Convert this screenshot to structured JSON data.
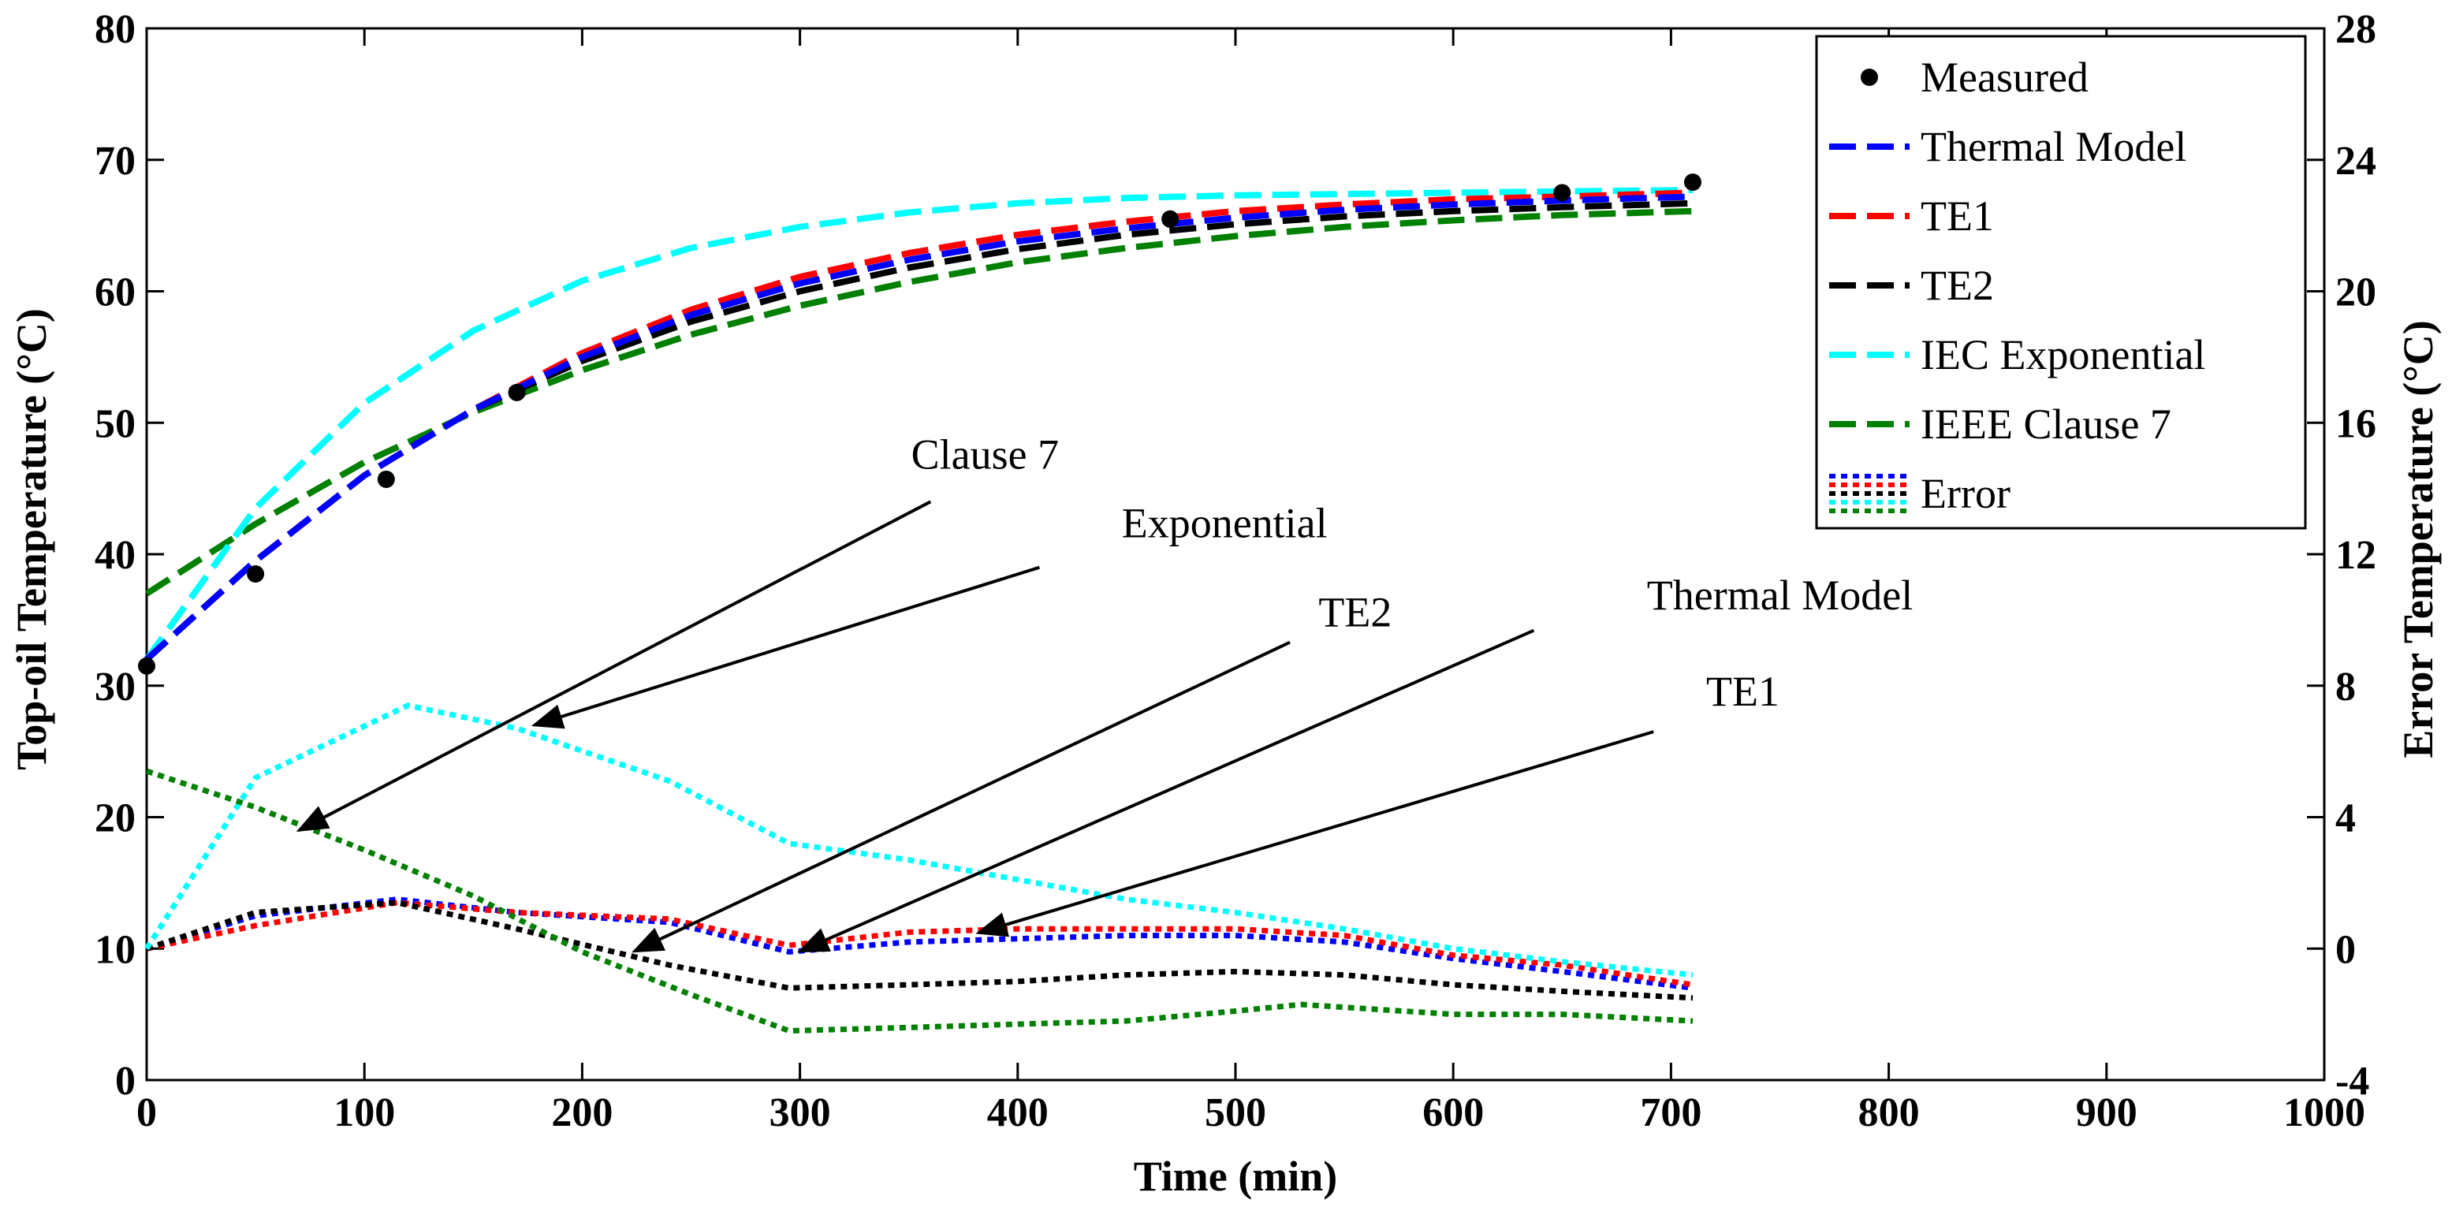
{
  "chart_data": {
    "type": "line",
    "title": "",
    "xlabel": "Time (min)",
    "ylabel": "Top-oil Temperature (°C)",
    "y2label": "Error Temperature (°C)",
    "xlim": [
      0,
      1000
    ],
    "ylim": [
      0,
      80
    ],
    "y2lim": [
      -4,
      28
    ],
    "xticks": [
      "0",
      "100",
      "200",
      "300",
      "400",
      "500",
      "600",
      "700",
      "800",
      "900",
      "1000"
    ],
    "yticks": [
      "0",
      "10",
      "20",
      "30",
      "40",
      "50",
      "60",
      "70",
      "80"
    ],
    "y2ticks": [
      "-4",
      "0",
      "4",
      "8",
      "12",
      "16",
      "20",
      "24",
      "28"
    ],
    "grid": false,
    "legend_position": "top-right",
    "legend": [
      "Measured",
      "Thermal Model",
      "TE1",
      "TE2",
      "IEC Exponential",
      "IEEE Clause 7",
      "Error"
    ],
    "measured": {
      "name": "Measured",
      "color": "#000000",
      "x": [
        0,
        50,
        110,
        170,
        470,
        650,
        710
      ],
      "y": [
        31.5,
        38.5,
        45.7,
        52.3,
        65.5,
        67.5,
        68.3
      ]
    },
    "model_series": [
      {
        "name": "Thermal Model",
        "color": "#0000FF",
        "x": [
          0,
          50,
          100,
          150,
          200,
          250,
          300,
          350,
          400,
          450,
          500,
          550,
          600,
          650,
          710
        ],
        "y": [
          32,
          39.5,
          46,
          51,
          55,
          58.2,
          60.6,
          62.4,
          63.8,
          64.8,
          65.6,
          66.2,
          66.6,
          66.9,
          67.2
        ]
      },
      {
        "name": "TE1",
        "color": "#FF0000",
        "x": [
          0,
          50,
          100,
          150,
          200,
          250,
          300,
          350,
          400,
          450,
          500,
          550,
          600,
          650,
          710
        ],
        "y": [
          32,
          39.5,
          46,
          51,
          55.3,
          58.6,
          61.1,
          62.9,
          64.3,
          65.3,
          66.1,
          66.6,
          67,
          67.2,
          67.5
        ]
      },
      {
        "name": "TE2",
        "color": "#000000",
        "x": [
          0,
          50,
          100,
          150,
          200,
          250,
          300,
          350,
          400,
          450,
          500,
          550,
          600,
          650,
          710
        ],
        "y": [
          32,
          39.5,
          46,
          51,
          54.7,
          57.7,
          60,
          61.8,
          63.2,
          64.3,
          65.1,
          65.7,
          66.1,
          66.4,
          66.7
        ]
      },
      {
        "name": "IEC Exponential",
        "color": "#00FFFF",
        "x": [
          0,
          50,
          100,
          150,
          200,
          250,
          300,
          350,
          400,
          450,
          500,
          550,
          600,
          650,
          710
        ],
        "y": [
          32,
          43.5,
          51.5,
          57,
          60.8,
          63.3,
          64.9,
          66,
          66.7,
          67.1,
          67.3,
          67.4,
          67.5,
          67.6,
          67.7
        ]
      },
      {
        "name": "IEEE Clause 7",
        "color": "#008000",
        "x": [
          0,
          50,
          100,
          150,
          200,
          250,
          300,
          350,
          400,
          450,
          500,
          550,
          600,
          650,
          710
        ],
        "y": [
          37,
          42.3,
          47,
          50.8,
          54,
          56.7,
          58.9,
          60.7,
          62.2,
          63.3,
          64.2,
          64.9,
          65.4,
          65.8,
          66.1
        ]
      }
    ],
    "error_series": [
      {
        "name": "Thermal Model error",
        "color": "#0000FF",
        "x": [
          0,
          50,
          115,
          170,
          240,
          295,
          350,
          400,
          450,
          500,
          550,
          600,
          650,
          710
        ],
        "y": [
          0,
          1,
          1.5,
          1.1,
          0.8,
          -0.1,
          0.2,
          0.3,
          0.4,
          0.4,
          0.2,
          -0.3,
          -0.7,
          -1.2
        ]
      },
      {
        "name": "TE1 error",
        "color": "#FF0000",
        "x": [
          0,
          50,
          115,
          170,
          240,
          295,
          350,
          400,
          450,
          500,
          550,
          600,
          650,
          710
        ],
        "y": [
          0,
          0.7,
          1.4,
          1.1,
          0.9,
          0.1,
          0.5,
          0.6,
          0.6,
          0.6,
          0.4,
          -0.2,
          -0.5,
          -1.1
        ]
      },
      {
        "name": "TE2 error",
        "color": "#000000",
        "x": [
          0,
          50,
          115,
          170,
          240,
          295,
          350,
          400,
          450,
          500,
          550,
          600,
          650,
          710
        ],
        "y": [
          0,
          1.1,
          1.4,
          0.6,
          -0.5,
          -1.2,
          -1.1,
          -1,
          -0.8,
          -0.7,
          -0.8,
          -1.1,
          -1.3,
          -1.5
        ]
      },
      {
        "name": "IEC Exponential error",
        "color": "#00FFFF",
        "x": [
          0,
          50,
          120,
          170,
          240,
          295,
          350,
          400,
          450,
          500,
          550,
          600,
          650,
          710
        ],
        "y": [
          0,
          5.2,
          7.4,
          6.7,
          5.1,
          3.2,
          2.7,
          2.1,
          1.5,
          1.1,
          0.6,
          0,
          -0.4,
          -0.8
        ]
      },
      {
        "name": "IEEE Clause 7 error",
        "color": "#008000",
        "x": [
          0,
          50,
          100,
          150,
          200,
          250,
          295,
          350,
          400,
          450,
          500,
          530,
          600,
          650,
          710
        ],
        "y": [
          5.4,
          4.3,
          3,
          1.6,
          -0.1,
          -1.4,
          -2.5,
          -2.4,
          -2.3,
          -2.2,
          -1.9,
          -1.7,
          -2,
          -2,
          -2.2
        ]
      }
    ],
    "annotations": [
      {
        "text": "Clause 7",
        "label_x": 385,
        "label_y": 46.5,
        "arrow_from": [
          360,
          44
        ],
        "arrow_to": [
          70,
          19
        ]
      },
      {
        "text": "Exponential",
        "label_x": 495,
        "label_y": 41.3,
        "arrow_from": [
          410,
          39
        ],
        "arrow_to": [
          178,
          27
        ]
      },
      {
        "text": "TE2",
        "label_x": 555,
        "label_y": 34.5,
        "arrow_from": [
          525,
          33.3
        ],
        "arrow_to": [
          224,
          9.8
        ]
      },
      {
        "text": "Thermal Model",
        "label_x": 750,
        "label_y": 35.8,
        "arrow_from": [
          637,
          34.2
        ],
        "arrow_to": [
          300,
          9.8
        ]
      },
      {
        "text": "TE1",
        "label_x": 733,
        "label_y": 28.5,
        "arrow_from": [
          692,
          26.5
        ],
        "arrow_to": [
          382,
          11.2
        ]
      }
    ]
  },
  "colors": {
    "blue": "#0000FF",
    "red": "#FF0000",
    "black": "#000000",
    "cyan": "#00FFFF",
    "green": "#008000"
  }
}
